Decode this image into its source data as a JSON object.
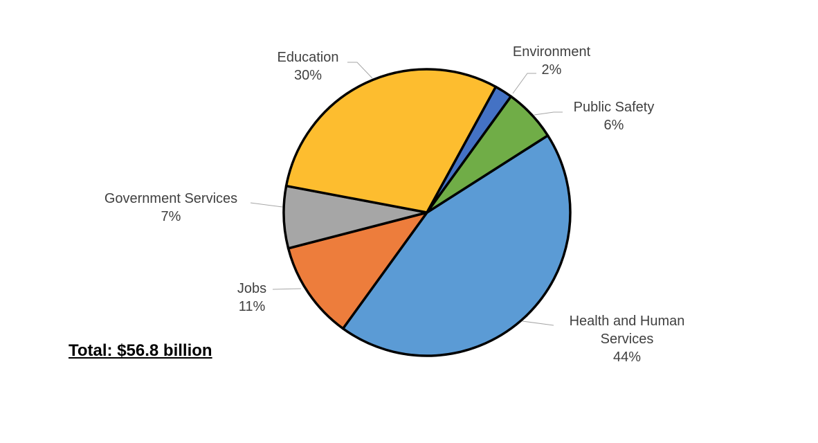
{
  "chart_data": {
    "type": "pie",
    "slices": [
      {
        "name": "Health and Human Services",
        "value": 44,
        "color": "#5B9BD5",
        "label_lines": [
          "Health  and Human",
          "Services",
          "44%"
        ]
      },
      {
        "name": "Jobs",
        "value": 11,
        "color": "#ED7D3C",
        "label_lines": [
          "Jobs",
          "11%"
        ]
      },
      {
        "name": "Government Services",
        "value": 7,
        "color": "#A6A6A6",
        "label_lines": [
          "Government  Services",
          "7%"
        ]
      },
      {
        "name": "Education",
        "value": 30,
        "color": "#FDBD2F",
        "label_lines": [
          "Education",
          "30%"
        ]
      },
      {
        "name": "Environment",
        "value": 2,
        "color": "#4472C4",
        "label_lines": [
          "Environment",
          "2%"
        ]
      },
      {
        "name": "Public Safety",
        "value": 6,
        "color": "#70AD47",
        "label_lines": [
          "Public Safety",
          "6%"
        ]
      }
    ],
    "unit": "%",
    "total_label": "Total: $56.8 billion"
  }
}
